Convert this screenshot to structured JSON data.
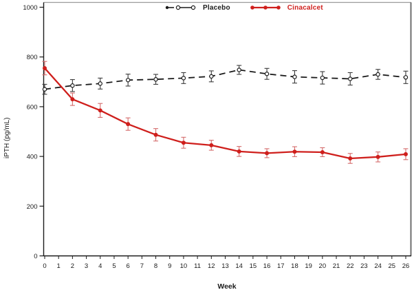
{
  "figure": {
    "background": "#ffffff",
    "axis_color": "#1a1a1a",
    "frame_top_color": "#9a9a9a",
    "frame_right_color": "#6e6e6e"
  },
  "legend": {
    "items": [
      {
        "label": "Placebo",
        "color": "#1a1a1a",
        "label_color": "#1a1a1a",
        "line_style": "dashed",
        "marker": "open-circle"
      },
      {
        "label": "Cinacalcet",
        "color": "#cf1f1c",
        "label_color": "#cf1f1c",
        "line_style": "solid",
        "marker": "filled-circle"
      }
    ]
  },
  "chart_data": {
    "type": "line",
    "title": "",
    "xlabel": "Week",
    "ylabel": "iPTH (pg/mL)",
    "x": [
      0,
      2,
      4,
      6,
      8,
      10,
      12,
      14,
      16,
      18,
      20,
      22,
      24,
      26
    ],
    "x_ticks": [
      0,
      1,
      2,
      3,
      4,
      5,
      6,
      7,
      8,
      9,
      10,
      11,
      12,
      13,
      14,
      15,
      16,
      17,
      18,
      19,
      20,
      21,
      22,
      23,
      24,
      25,
      26
    ],
    "y_ticks": [
      0,
      200,
      400,
      600,
      800,
      1000
    ],
    "ylim": [
      0,
      1000
    ],
    "grid": false,
    "legend_position": "top",
    "series": [
      {
        "name": "Placebo",
        "color": "#1a1a1a",
        "error_color": "#3a3a3a",
        "line_style": "dashed",
        "marker": "open-circle",
        "values": [
          670,
          685,
          693,
          707,
          710,
          715,
          722,
          748,
          732,
          720,
          716,
          712,
          730,
          718
        ],
        "errors": [
          20,
          24,
          22,
          24,
          20,
          22,
          22,
          18,
          22,
          25,
          25,
          25,
          20,
          25
        ]
      },
      {
        "name": "Cinacalcet",
        "color": "#cf1f1c",
        "error_color": "#d46a6a",
        "line_style": "solid",
        "marker": "filled-circle",
        "values": [
          755,
          630,
          585,
          530,
          487,
          455,
          445,
          420,
          413,
          419,
          417,
          392,
          398,
          409
        ],
        "errors": [
          27,
          25,
          28,
          25,
          25,
          22,
          20,
          20,
          18,
          20,
          18,
          20,
          20,
          22
        ]
      }
    ]
  }
}
